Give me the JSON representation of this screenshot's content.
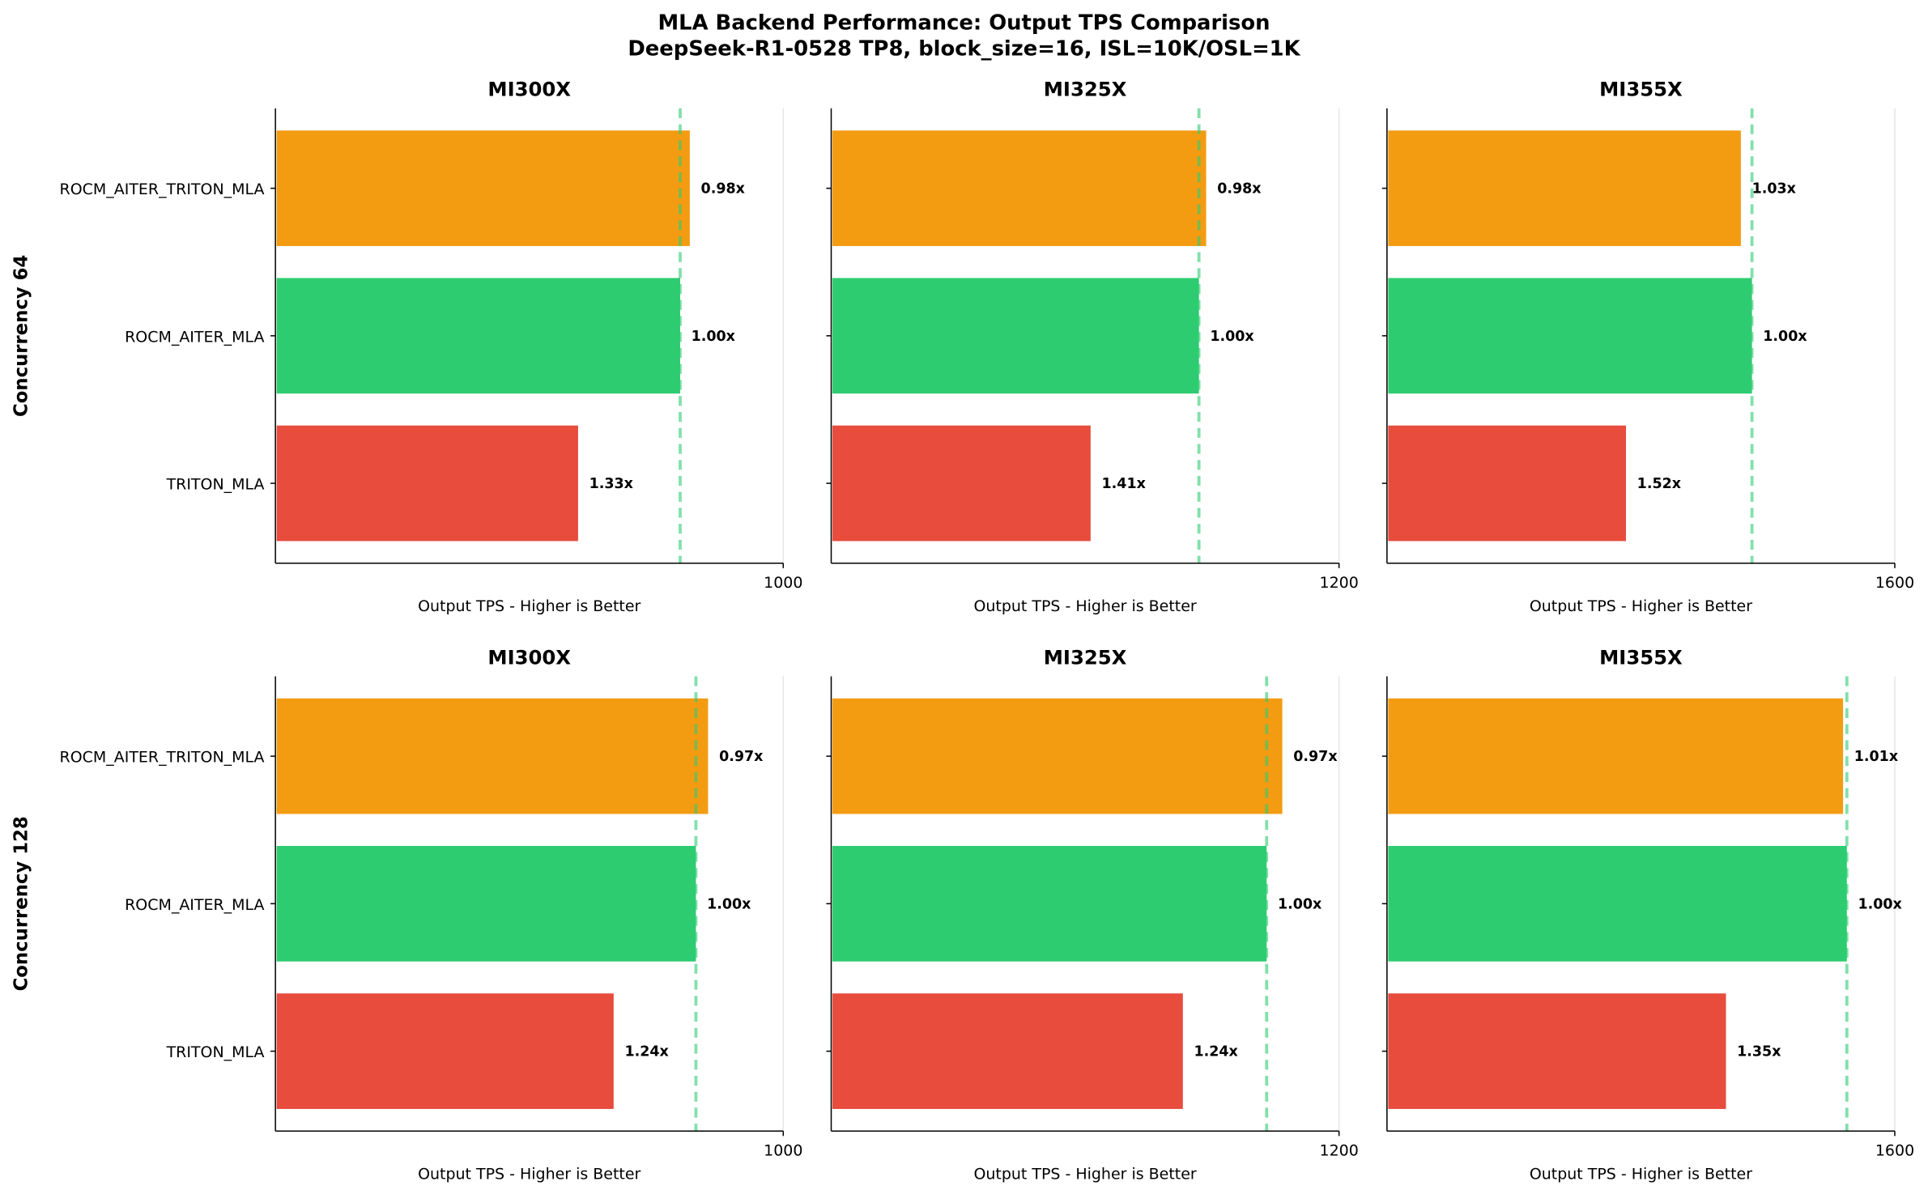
{
  "chart_data": {
    "type": "bar",
    "orientation": "horizontal",
    "title": "MLA Backend Performance: Output TPS Comparison",
    "subtitle": "DeepSeek-R1-0528 TP8, block_size=16, ISL=10K/OSL=1K",
    "categories": [
      "ROCM_AITER_TRITON_MLA",
      "ROCM_AITER_MLA",
      "TRITON_MLA"
    ],
    "colors": [
      "#f39c12",
      "#2ecc71",
      "#e74c3c"
    ],
    "reference_line_color": "#2ecc71",
    "grid": "x",
    "xlabel": "Output TPS - Higher is Better",
    "rows": [
      "Concurrency 64",
      "Concurrency 128"
    ],
    "columns": [
      "MI300X",
      "MI325X",
      "MI355X"
    ],
    "panels": [
      {
        "row": 0,
        "title": "MI300X",
        "xlim": [
          0,
          1000
        ],
        "xticks": [
          1000
        ],
        "values": [
          816,
          797,
          596
        ],
        "labels": [
          "0.98x",
          "1.00x",
          "1.33x"
        ]
      },
      {
        "row": 0,
        "title": "MI325X",
        "xlim": [
          0,
          1200
        ],
        "xticks": [
          1200
        ],
        "values": [
          886,
          869,
          613
        ],
        "labels": [
          "0.98x",
          "1.00x",
          "1.41x"
        ]
      },
      {
        "row": 0,
        "title": "MI355X",
        "xlim": [
          0,
          1600
        ],
        "xticks": [
          1600
        ],
        "values": [
          1115,
          1150,
          753
        ],
        "labels": [
          "1.03x",
          "1.00x",
          "1.52x"
        ]
      },
      {
        "row": 1,
        "title": "MI300X",
        "xlim": [
          0,
          1000
        ],
        "xticks": [
          1000
        ],
        "values": [
          852,
          828,
          666
        ],
        "labels": [
          "0.97x",
          "1.00x",
          "1.24x"
        ]
      },
      {
        "row": 1,
        "title": "MI325X",
        "xlim": [
          0,
          1200
        ],
        "xticks": [
          1200
        ],
        "values": [
          1066,
          1029,
          831
        ],
        "labels": [
          "0.97x",
          "1.00x",
          "1.24x"
        ]
      },
      {
        "row": 1,
        "title": "MI355X",
        "xlim": [
          0,
          1600
        ],
        "xticks": [
          1600
        ],
        "values": [
          1437,
          1449,
          1068
        ],
        "labels": [
          "1.01x",
          "1.00x",
          "1.35x"
        ]
      }
    ]
  }
}
